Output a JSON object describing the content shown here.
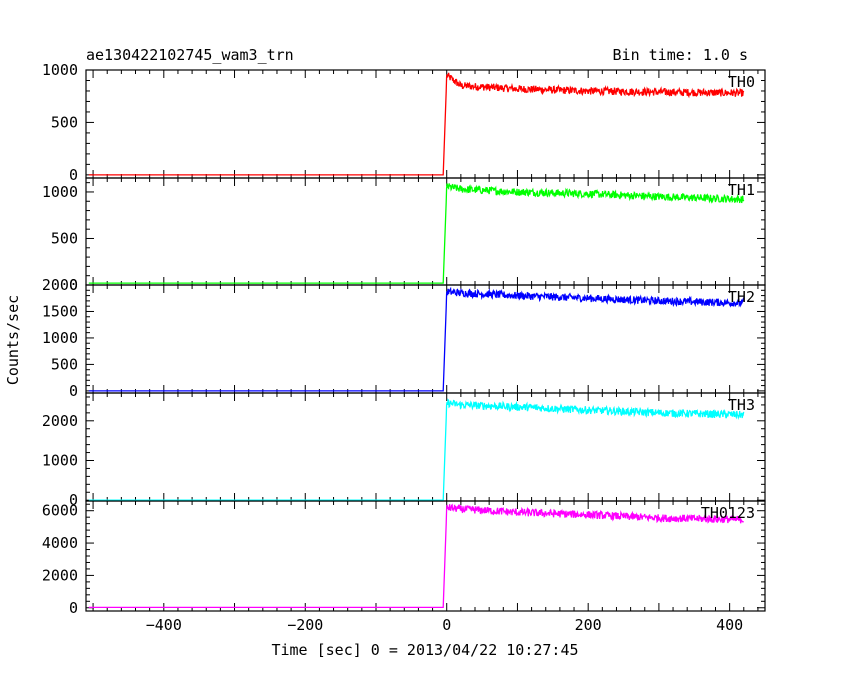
{
  "header": {
    "title": "ae130422102745_wam3_trn",
    "bin_time": "Bin time: 1.0 s"
  },
  "chart_data": {
    "type": "line",
    "title": "ae130422102745_wam3_trn",
    "subtitle": "Bin time: 1.0 s",
    "xlabel": "Time [sec] 0 = 2013/04/22 10:27:45",
    "ylabel": "Counts/sec",
    "xlim": [
      -510,
      450
    ],
    "x_ticks": [
      -400,
      -200,
      0,
      200,
      400
    ],
    "grid": false,
    "panels": [
      {
        "name": "TH0",
        "color": "#ff0000",
        "ylim": [
          -30,
          1000
        ],
        "y_ticks": [
          0,
          500,
          1000
        ],
        "pre_level": 0,
        "onset": -5,
        "profile": [
          [
            -5,
            0
          ],
          [
            0,
            950
          ],
          [
            20,
            850
          ],
          [
            100,
            820
          ],
          [
            200,
            800
          ],
          [
            300,
            790
          ],
          [
            420,
            780
          ]
        ]
      },
      {
        "name": "TH1",
        "color": "#00ff00",
        "ylim": [
          0,
          1150
        ],
        "y_ticks": [
          0,
          500,
          1000
        ],
        "pre_level": 20,
        "onset": -5,
        "profile": [
          [
            -5,
            20
          ],
          [
            0,
            1060
          ],
          [
            20,
            1030
          ],
          [
            100,
            1000
          ],
          [
            200,
            980
          ],
          [
            300,
            950
          ],
          [
            420,
            920
          ]
        ]
      },
      {
        "name": "TH2",
        "color": "#0000ff",
        "ylim": [
          -40,
          2000
        ],
        "y_ticks": [
          0,
          500,
          1000,
          1500,
          2000
        ],
        "pre_level": 0,
        "onset": -5,
        "profile": [
          [
            -5,
            0
          ],
          [
            0,
            1870
          ],
          [
            20,
            1850
          ],
          [
            100,
            1800
          ],
          [
            200,
            1750
          ],
          [
            300,
            1700
          ],
          [
            420,
            1660
          ]
        ]
      },
      {
        "name": "TH3",
        "color": "#00ffff",
        "ylim": [
          -20,
          2700
        ],
        "y_ticks": [
          0,
          1000,
          2000
        ],
        "pre_level": 0,
        "onset": -5,
        "profile": [
          [
            -5,
            0
          ],
          [
            0,
            2450
          ],
          [
            20,
            2400
          ],
          [
            100,
            2350
          ],
          [
            200,
            2270
          ],
          [
            300,
            2200
          ],
          [
            420,
            2150
          ]
        ]
      },
      {
        "name": "TH0123",
        "color": "#ff00ff",
        "ylim": [
          -200,
          6600
        ],
        "y_ticks": [
          0,
          2000,
          4000,
          6000
        ],
        "pre_level": 20,
        "onset": -5,
        "profile": [
          [
            -5,
            20
          ],
          [
            0,
            6200
          ],
          [
            20,
            6100
          ],
          [
            100,
            5900
          ],
          [
            200,
            5750
          ],
          [
            300,
            5550
          ],
          [
            420,
            5450
          ]
        ]
      }
    ]
  }
}
